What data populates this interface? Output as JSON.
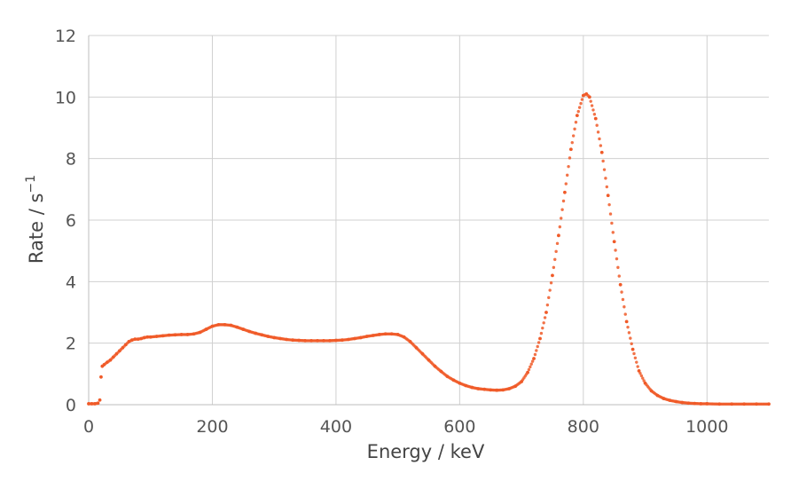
{
  "chart_data": {
    "type": "scatter",
    "title": "",
    "xlabel": "Energy / keV",
    "ylabel_text": "Rate / s",
    "ylabel_sup": "−1",
    "xlim": [
      0,
      1100
    ],
    "ylim": [
      0,
      12
    ],
    "xticks": [
      0,
      200,
      400,
      600,
      800,
      1000
    ],
    "yticks": [
      0,
      2,
      4,
      6,
      8,
      10,
      12
    ],
    "xtick_labels": [
      "0",
      "200",
      "400",
      "600",
      "800",
      "1000"
    ],
    "ytick_labels": [
      "0",
      "2",
      "4",
      "6",
      "8",
      "10",
      "12"
    ],
    "grid": true,
    "legend": "none",
    "marker_color": "#f05a28",
    "series": [
      {
        "x": [
          0,
          5,
          10,
          15,
          18,
          20,
          22,
          25,
          30,
          35,
          40,
          45,
          50,
          55,
          60,
          65,
          70,
          75,
          80,
          85,
          90,
          95,
          100,
          110,
          120,
          130,
          140,
          150,
          160,
          170,
          180,
          190,
          200,
          210,
          220,
          230,
          240,
          250,
          260,
          270,
          280,
          290,
          300,
          310,
          320,
          330,
          340,
          350,
          360,
          370,
          380,
          390,
          400,
          410,
          420,
          430,
          440,
          450,
          460,
          470,
          480,
          490,
          500,
          510,
          520,
          530,
          540,
          550,
          560,
          570,
          580,
          590,
          600,
          610,
          620,
          630,
          640,
          650,
          660,
          670,
          680,
          690,
          700,
          710,
          720,
          730,
          740,
          750,
          760,
          770,
          780,
          790,
          800,
          805,
          810,
          820,
          830,
          840,
          850,
          860,
          870,
          880,
          890,
          900,
          910,
          920,
          930,
          940,
          950,
          960,
          970,
          980,
          990,
          1000,
          1020,
          1040,
          1060,
          1080,
          1100
        ],
        "y": [
          0.03,
          0.03,
          0.03,
          0.05,
          0.15,
          0.9,
          1.25,
          1.3,
          1.38,
          1.45,
          1.55,
          1.65,
          1.75,
          1.85,
          1.95,
          2.05,
          2.1,
          2.13,
          2.13,
          2.15,
          2.18,
          2.2,
          2.2,
          2.22,
          2.24,
          2.26,
          2.27,
          2.28,
          2.28,
          2.3,
          2.35,
          2.45,
          2.55,
          2.6,
          2.6,
          2.58,
          2.52,
          2.45,
          2.38,
          2.32,
          2.27,
          2.22,
          2.18,
          2.15,
          2.12,
          2.1,
          2.09,
          2.08,
          2.08,
          2.08,
          2.08,
          2.08,
          2.09,
          2.1,
          2.12,
          2.15,
          2.18,
          2.22,
          2.25,
          2.28,
          2.3,
          2.3,
          2.28,
          2.2,
          2.05,
          1.85,
          1.65,
          1.45,
          1.25,
          1.08,
          0.92,
          0.8,
          0.7,
          0.62,
          0.56,
          0.52,
          0.5,
          0.48,
          0.47,
          0.48,
          0.52,
          0.6,
          0.75,
          1.05,
          1.5,
          2.15,
          3.0,
          4.2,
          5.5,
          6.9,
          8.3,
          9.4,
          10.05,
          10.1,
          10.0,
          9.3,
          8.2,
          6.8,
          5.3,
          3.9,
          2.7,
          1.8,
          1.1,
          0.7,
          0.45,
          0.3,
          0.2,
          0.14,
          0.1,
          0.07,
          0.05,
          0.04,
          0.03,
          0.03,
          0.02,
          0.02,
          0.02,
          0.02,
          0.02
        ]
      }
    ]
  }
}
